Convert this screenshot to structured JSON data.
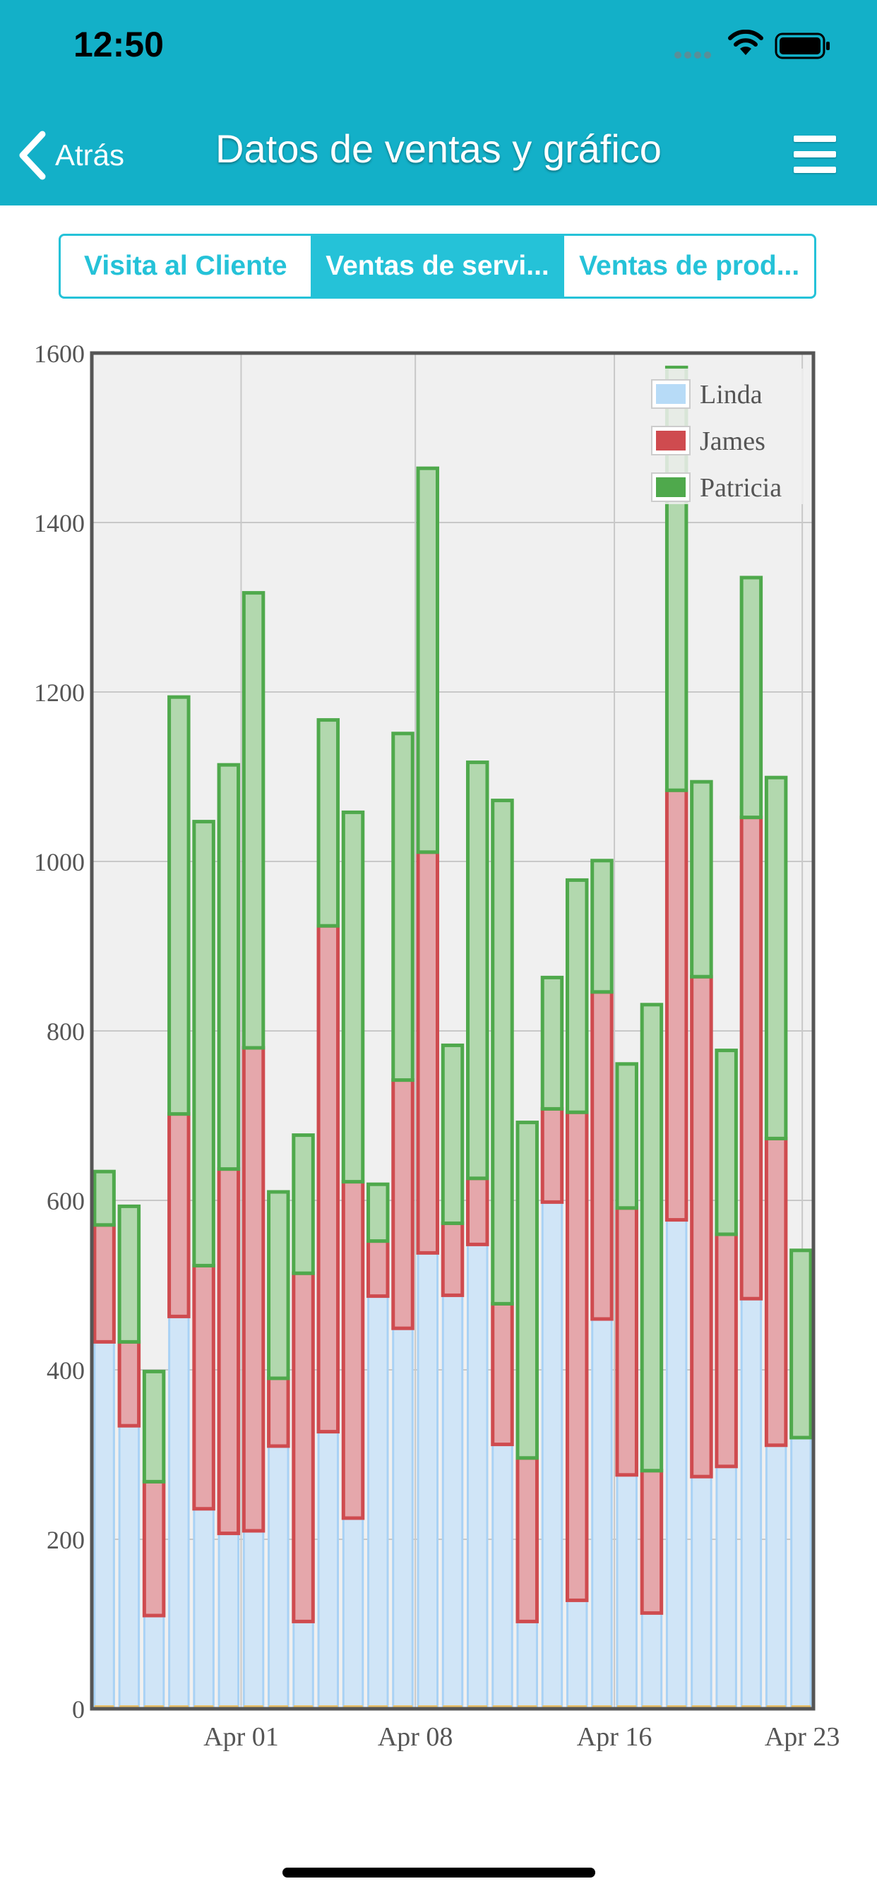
{
  "status_bar": {
    "time": "12:50"
  },
  "nav": {
    "back_label": "Atrás",
    "title": "Datos de ventas y gráfico"
  },
  "tabs": [
    {
      "label": "Visita al Cliente",
      "active": false
    },
    {
      "label": "Ventas de servi...",
      "active": true
    },
    {
      "label": "Ventas de prod...",
      "active": false
    }
  ],
  "colors": {
    "header": "#13b0c8",
    "accent": "#25c2d8",
    "linda_fill": "#d0e5f7",
    "linda_stroke": "#a9d2f5",
    "james_fill": "#e5a7ab",
    "james_stroke": "#cf4b4f",
    "patricia_fill": "#b2d8ae",
    "patricia_stroke": "#4fa94c"
  },
  "chart_data": {
    "type": "bar",
    "stacked": true,
    "x_tick_labels": [
      "Apr 01",
      "Apr 08",
      "Apr 16",
      "Apr 23"
    ],
    "ylim": [
      0,
      1600
    ],
    "y_ticks": [
      "0",
      "200",
      "400",
      "600",
      "800",
      "1000",
      "1200",
      "1400",
      "1600"
    ],
    "grid": true,
    "legend_position": "top-right",
    "series": [
      {
        "name": "Linda",
        "values": [
          433,
          334,
          110,
          463,
          236,
          207,
          210,
          310,
          103,
          327,
          225,
          487,
          449,
          538,
          488,
          548,
          312,
          103,
          598,
          128,
          460,
          276,
          113,
          577,
          274,
          286,
          484,
          311,
          320
        ]
      },
      {
        "name": "James",
        "values": [
          138,
          99,
          158,
          239,
          287,
          430,
          570,
          80,
          411,
          597,
          397,
          65,
          293,
          473,
          85,
          78,
          166,
          193,
          110,
          576,
          386,
          315,
          168,
          507,
          590,
          274,
          568,
          362,
          0
        ]
      },
      {
        "name": "Patricia",
        "values": [
          63,
          160,
          130,
          492,
          524,
          477,
          537,
          220,
          163,
          243,
          436,
          67,
          409,
          453,
          210,
          491,
          594,
          396,
          155,
          274,
          155,
          170,
          550,
          499,
          230,
          217,
          283,
          426,
          221
        ]
      }
    ]
  }
}
